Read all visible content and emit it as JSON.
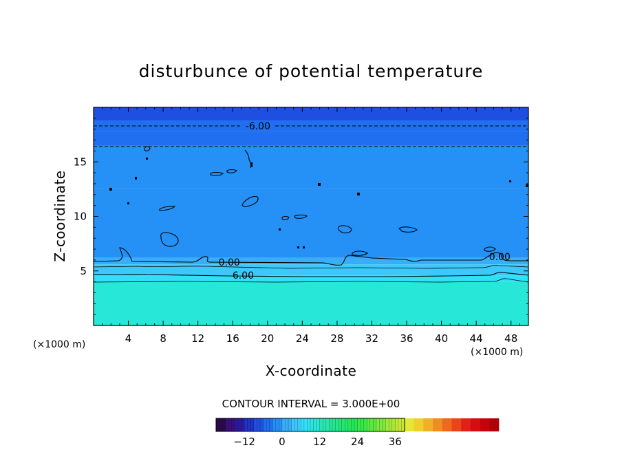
{
  "chart_data": {
    "type": "heatmap",
    "title": "disturbunce of potential temperature",
    "xlabel": "X-coordinate",
    "ylabel": "Z-coordinate",
    "x_unit": "(×1000 m)",
    "y_unit": "(×1000 m)",
    "xlim": [
      0,
      50
    ],
    "ylim": [
      0,
      20
    ],
    "x_ticks": [
      4,
      8,
      12,
      16,
      20,
      24,
      28,
      32,
      36,
      40,
      44,
      48
    ],
    "y_ticks": [
      5,
      10,
      15
    ],
    "contour_interval_label": "CONTOUR INTERVAL = 3.000E+00",
    "contour_labels": [
      {
        "text": "-6.00",
        "x": 18.9,
        "y": 18.3
      },
      {
        "text": "0.00",
        "x": 15.6,
        "y": 5.8
      },
      {
        "text": "6.00",
        "x": 17.2,
        "y": 4.6
      },
      {
        "text": "0.00",
        "x": 46.7,
        "y": 6.3
      }
    ],
    "colorbar": {
      "min": -21,
      "max": 39,
      "step": 3,
      "ticks": [
        -12,
        0,
        12,
        24,
        36
      ],
      "colors": [
        "#2b0a4a",
        "#3a0f7a",
        "#2a1aa0",
        "#1f33c4",
        "#1e4fe0",
        "#1f6ff0",
        "#2590f5",
        "#38aef8",
        "#3cc8fb",
        "#2fe0f7",
        "#27e8d8",
        "#24e8b0",
        "#22e890",
        "#20e870",
        "#22e858",
        "#36e848",
        "#5ae840",
        "#7ee83c",
        "#a2e838",
        "#c4e834",
        "#e4e830",
        "#f0d028",
        "#f0b024",
        "#f08c20",
        "#f0681c",
        "#ec4418",
        "#e42014",
        "#d80c10",
        "#c8000c",
        "#b00008"
      ]
    },
    "field_bands": [
      {
        "z_from": 18.8,
        "z_to": 20.0,
        "value": -9
      },
      {
        "z_from": 17.8,
        "z_to": 18.8,
        "value": -6
      },
      {
        "z_from": 16.5,
        "z_to": 17.8,
        "value": -4
      },
      {
        "z_from": 12.5,
        "z_to": 16.5,
        "value": -2
      },
      {
        "z_from": 6.2,
        "z_to": 12.5,
        "value": -1
      },
      {
        "z_from": 5.6,
        "z_to": 6.2,
        "value": 1
      },
      {
        "z_from": 4.6,
        "z_to": 5.6,
        "value": 4
      },
      {
        "z_from": 4.0,
        "z_to": 4.6,
        "value": 6
      },
      {
        "z_from": 0.0,
        "z_to": 4.0,
        "value": 9
      }
    ]
  }
}
